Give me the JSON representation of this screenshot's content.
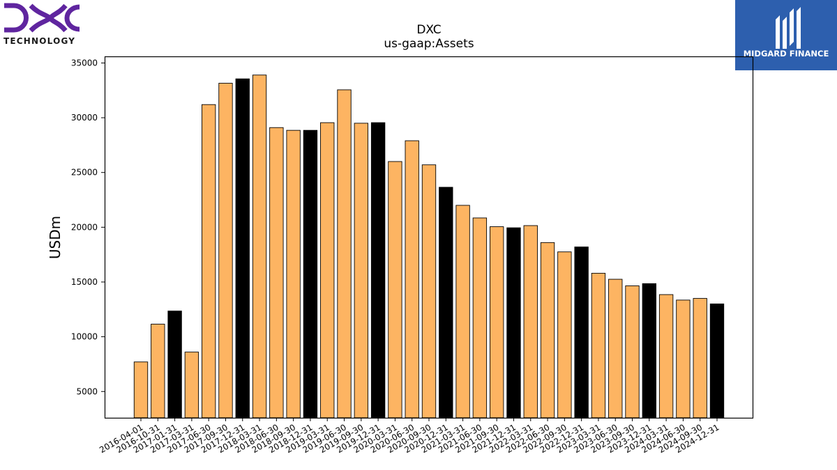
{
  "logos": {
    "left": {
      "text": "TECHNOLOGY",
      "color": "#5f259f"
    },
    "right": {
      "text": "MIDGARD FINANCE",
      "color": "#2d5fae"
    }
  },
  "chart_data": {
    "type": "bar",
    "title": "DXC",
    "subtitle": "us-gaap:Assets",
    "xlabel": "",
    "ylabel": "USDm",
    "ylim": [
      2600,
      35600
    ],
    "yticks": [
      5000,
      10000,
      15000,
      20000,
      25000,
      30000,
      35000
    ],
    "grid": false,
    "colors": {
      "quarter": "#fdb462",
      "year_end": "#000000",
      "edge": "#000000"
    },
    "categories": [
      "2016-04-01",
      "2016-10-31",
      "2017-01-31",
      "2017-03-31",
      "2017-06-30",
      "2017-09-30",
      "2017-12-31",
      "2018-03-31",
      "2018-06-30",
      "2018-09-30",
      "2018-12-31",
      "2019-03-31",
      "2019-06-30",
      "2019-09-30",
      "2019-12-31",
      "2020-03-31",
      "2020-06-30",
      "2020-09-30",
      "2020-12-31",
      "2021-03-31",
      "2021-06-30",
      "2021-09-30",
      "2021-12-31",
      "2022-03-31",
      "2022-06-30",
      "2022-09-30",
      "2022-12-31",
      "2023-03-31",
      "2023-06-30",
      "2023-09-30",
      "2023-12-31",
      "2024-03-31",
      "2024-06-30",
      "2024-09-30",
      "2024-12-31"
    ],
    "values": [
      7700,
      11150,
      12350,
      8600,
      31200,
      33150,
      33550,
      33900,
      29100,
      28850,
      28850,
      29550,
      32550,
      29500,
      29550,
      26000,
      27900,
      25700,
      23650,
      22000,
      20850,
      20050,
      19950,
      20150,
      18600,
      17750,
      18200,
      15800,
      15250,
      14650,
      14850,
      13850,
      13350,
      13500,
      13000
    ],
    "highlight": [
      false,
      false,
      true,
      false,
      false,
      false,
      true,
      false,
      false,
      false,
      true,
      false,
      false,
      false,
      true,
      false,
      false,
      false,
      true,
      false,
      false,
      false,
      true,
      false,
      false,
      false,
      true,
      false,
      false,
      false,
      true,
      false,
      false,
      false,
      true
    ]
  }
}
